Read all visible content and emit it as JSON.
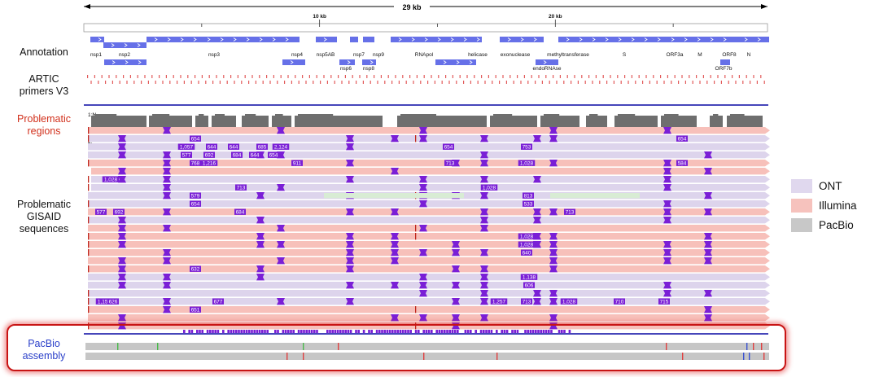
{
  "ruler": {
    "total_label": "29 kb",
    "ticks": [
      {
        "label": "10 kb",
        "pos": 10000
      },
      {
        "label": "20 kb",
        "pos": 20000
      }
    ]
  },
  "track_labels": {
    "annotation": "Annotation",
    "artic_line1": "ARTIC",
    "artic_line2": "primers V3",
    "problematic_regions_line1": "Problematic",
    "problematic_regions_line2": "regions",
    "gisaid_line1": "Problematic",
    "gisaid_line2": "GISAID",
    "gisaid_line3": "sequences",
    "pacbio_line1": "PacBio",
    "pacbio_line2": "assembly"
  },
  "genes_row1": [
    "nsp1",
    "nsp2",
    "nsp3",
    "nsp4",
    "nsp5AB",
    "nsp7",
    "nsp9",
    "RNApol",
    "helicase",
    "exonuclease",
    "methyltransferase",
    "S",
    "ORF3a",
    "M",
    "ORF8",
    "N"
  ],
  "genes_row2": [
    "nsp6",
    "nsp8",
    "endoRNAse",
    "ORF7b"
  ],
  "coverage_labels": [
    "1:N",
    "2:"
  ],
  "read_numbers": [
    "654",
    "654",
    "1,057",
    "644",
    "644",
    "685",
    "2,124",
    "654",
    "753",
    "577",
    "692",
    "684",
    "644",
    "654",
    "768",
    "1,216",
    "911",
    "713",
    "1,028",
    "584",
    "1,028",
    "713",
    "1,028",
    "579",
    "813",
    "654",
    "533",
    "577",
    "692",
    "684",
    "713",
    "1,028",
    "1,028",
    "640",
    "632",
    "1,138",
    "606",
    "1,159",
    "626",
    "677",
    "1,257",
    "713",
    "1,028",
    "710",
    "715",
    "651"
  ],
  "legend": [
    {
      "label": "ONT",
      "color": "#e0d8ee"
    },
    {
      "label": "Illumina",
      "color": "#f6c2bd"
    },
    {
      "label": "PacBio",
      "color": "#c8c8c8"
    }
  ],
  "colors": {
    "ont": "#ddd4ec",
    "illumina": "#f7c0ba",
    "pacbio": "#c6c6c6",
    "gene": "#6670e8",
    "primer": "#e25a5a",
    "mismatch": "#7a1fd6",
    "divider": "#2b2bb0",
    "highlight": "#c81414"
  }
}
